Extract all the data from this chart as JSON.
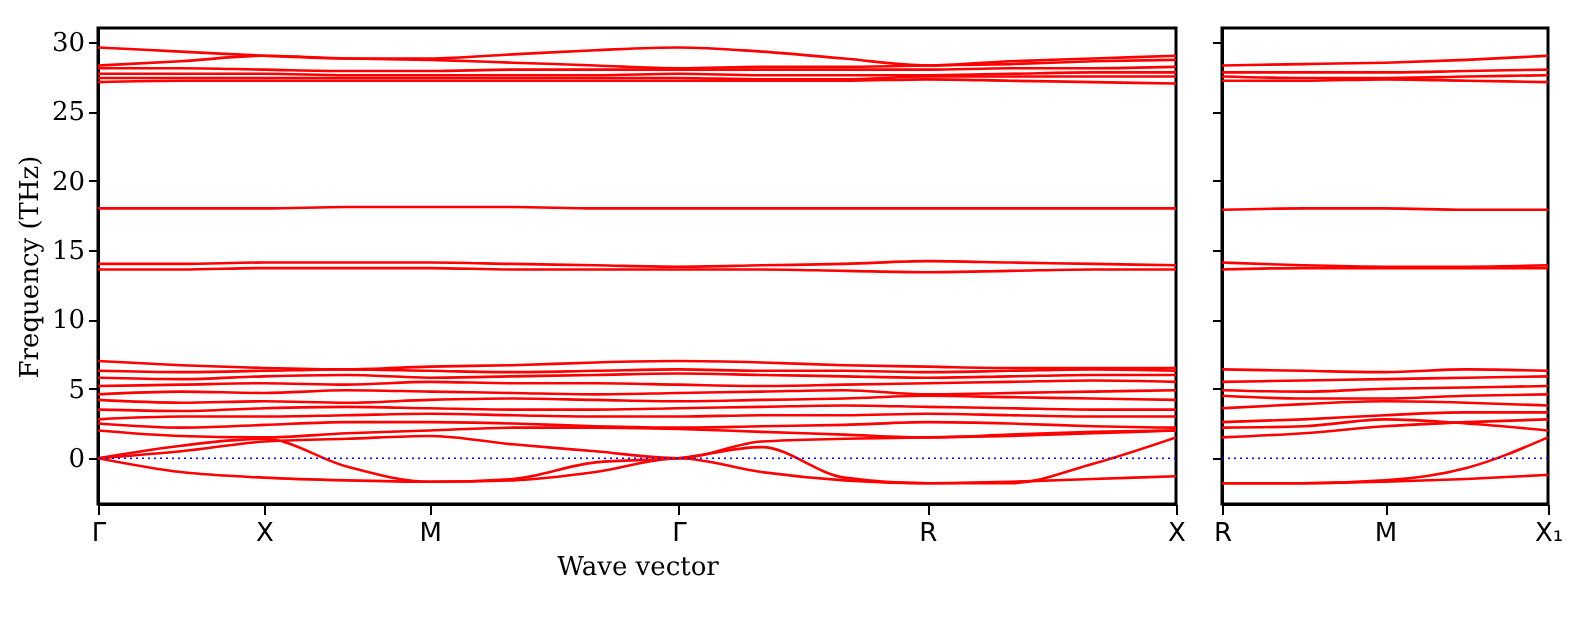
{
  "chart_data": [
    {
      "type": "line",
      "xlabel": "Wave vector",
      "ylabel": "Frequency (THz)",
      "ylim": [
        -3.3,
        31
      ],
      "categories": [
        "Γ",
        null,
        "X",
        null,
        "M",
        null,
        null,
        "Γ",
        null,
        null,
        "R",
        null,
        null,
        "X"
      ],
      "yticks": [
        0,
        5,
        10,
        15,
        20,
        25,
        30
      ],
      "grid": false,
      "legend": false,
      "marker": "none",
      "line_style": "solid",
      "ref_lines": [
        {
          "axis": "y",
          "value": 0,
          "color": "#0000ff",
          "line_style": "dotted"
        }
      ],
      "series": [
        {
          "color": "#ff0000",
          "values": [
            0,
            -1.0,
            -1.4,
            -1.6,
            -1.7,
            -1.6,
            -1.0,
            0,
            -1.0,
            -1.6,
            -1.8,
            -1.7,
            -1.5,
            -1.3
          ]
        },
        {
          "color": "#ff0000",
          "values": [
            0,
            0.9,
            1.4,
            -0.6,
            -1.7,
            -1.5,
            -0.3,
            0,
            0.8,
            -1.4,
            -1.8,
            -1.8,
            -0.4,
            1.5
          ]
        },
        {
          "color": "#ff0000",
          "values": [
            0,
            0.5,
            1.2,
            1.4,
            1.6,
            1.0,
            0.5,
            0,
            1.2,
            1.4,
            1.5,
            1.6,
            1.8,
            2.0
          ]
        },
        {
          "color": "#ff0000",
          "values": [
            2.0,
            1.6,
            1.5,
            1.8,
            2.0,
            2.2,
            2.2,
            2.1,
            1.9,
            1.7,
            1.5,
            1.7,
            1.9,
            2.0
          ]
        },
        {
          "color": "#ff0000",
          "values": [
            2.5,
            2.2,
            2.4,
            2.6,
            2.6,
            2.5,
            2.3,
            2.2,
            2.3,
            2.4,
            2.6,
            2.5,
            2.3,
            2.2
          ]
        },
        {
          "color": "#ff0000",
          "values": [
            2.8,
            3.0,
            3.0,
            3.1,
            3.2,
            3.1,
            3.0,
            3.0,
            3.1,
            3.1,
            3.2,
            3.1,
            3.0,
            3.0
          ]
        },
        {
          "color": "#ff0000",
          "values": [
            3.5,
            3.4,
            3.6,
            3.7,
            3.6,
            3.5,
            3.5,
            3.6,
            3.7,
            3.8,
            3.7,
            3.6,
            3.5,
            3.5
          ]
        },
        {
          "color": "#ff0000",
          "values": [
            4.2,
            4.0,
            4.1,
            4.0,
            4.2,
            4.3,
            4.2,
            4.1,
            4.2,
            4.3,
            4.5,
            4.4,
            4.3,
            4.2
          ]
        },
        {
          "color": "#ff0000",
          "values": [
            4.6,
            4.8,
            4.7,
            4.9,
            4.8,
            4.7,
            4.6,
            4.7,
            4.8,
            4.9,
            4.6,
            4.7,
            4.8,
            4.9
          ]
        },
        {
          "color": "#ff0000",
          "values": [
            5.2,
            5.3,
            5.4,
            5.3,
            5.5,
            5.4,
            5.4,
            5.3,
            5.2,
            5.3,
            5.4,
            5.5,
            5.6,
            5.5
          ]
        },
        {
          "color": "#ff0000",
          "values": [
            5.8,
            5.7,
            5.9,
            6.0,
            5.8,
            5.9,
            6.0,
            6.1,
            6.0,
            5.9,
            5.8,
            5.9,
            6.0,
            6.0
          ]
        },
        {
          "color": "#ff0000",
          "values": [
            6.3,
            6.2,
            6.3,
            6.4,
            6.3,
            6.2,
            6.3,
            6.4,
            6.3,
            6.3,
            6.2,
            6.3,
            6.4,
            6.3
          ]
        },
        {
          "color": "#ff0000",
          "values": [
            7.0,
            6.7,
            6.5,
            6.4,
            6.6,
            6.7,
            6.9,
            7.0,
            6.9,
            6.7,
            6.6,
            6.5,
            6.5,
            6.5
          ]
        },
        {
          "color": "#ff0000",
          "values": [
            13.6,
            13.6,
            13.7,
            13.7,
            13.7,
            13.6,
            13.6,
            13.6,
            13.6,
            13.5,
            13.4,
            13.5,
            13.6,
            13.6
          ]
        },
        {
          "color": "#ff0000",
          "values": [
            14.0,
            14.0,
            14.1,
            14.1,
            14.1,
            14.0,
            13.9,
            13.8,
            13.9,
            14.0,
            14.2,
            14.1,
            14.0,
            13.9
          ]
        },
        {
          "color": "#ff0000",
          "values": [
            18.0,
            18.0,
            18.0,
            18.1,
            18.1,
            18.1,
            18.0,
            18.0,
            18.0,
            18.0,
            18.0,
            18.0,
            18.0,
            18.0
          ]
        },
        {
          "color": "#ff0000",
          "values": [
            27.1,
            27.2,
            27.2,
            27.2,
            27.2,
            27.2,
            27.2,
            27.2,
            27.2,
            27.2,
            27.3,
            27.2,
            27.1,
            27.0
          ]
        },
        {
          "color": "#ff0000",
          "values": [
            27.4,
            27.4,
            27.4,
            27.4,
            27.4,
            27.4,
            27.4,
            27.4,
            27.3,
            27.3,
            27.5,
            27.5,
            27.5,
            27.5
          ]
        },
        {
          "color": "#ff0000",
          "values": [
            27.7,
            27.7,
            27.7,
            27.6,
            27.6,
            27.6,
            27.6,
            27.7,
            27.6,
            27.6,
            27.6,
            27.7,
            27.8,
            27.8
          ]
        },
        {
          "color": "#ff0000",
          "values": [
            28.1,
            28.1,
            28.0,
            27.9,
            27.9,
            28.0,
            28.0,
            28.0,
            28.0,
            28.0,
            28.0,
            28.1,
            28.1,
            28.2
          ]
        },
        {
          "color": "#ff0000",
          "values": [
            28.3,
            28.6,
            29.0,
            28.8,
            28.7,
            28.5,
            28.3,
            28.1,
            28.2,
            28.2,
            28.3,
            28.4,
            28.6,
            28.7
          ]
        },
        {
          "color": "#ff0000",
          "values": [
            29.6,
            29.3,
            29.0,
            28.8,
            28.8,
            29.1,
            29.4,
            29.6,
            29.3,
            28.8,
            28.3,
            28.6,
            28.8,
            29.0
          ]
        }
      ]
    },
    {
      "type": "line",
      "ylim": [
        -3.3,
        31
      ],
      "categories": [
        "R",
        null,
        "M",
        null,
        "X₁"
      ],
      "yticks": [
        0,
        5,
        10,
        15,
        20,
        25,
        30
      ],
      "tick_labels": "x",
      "grid": false,
      "legend": false,
      "marker": "none",
      "line_style": "solid",
      "ref_lines": [
        {
          "axis": "y",
          "value": 0,
          "color": "#0000ff",
          "line_style": "dotted"
        }
      ],
      "series": [
        {
          "color": "#ff0000",
          "values": [
            -1.8,
            -1.8,
            -1.7,
            -1.5,
            -1.2
          ]
        },
        {
          "color": "#ff0000",
          "values": [
            -1.8,
            -1.8,
            -1.6,
            -0.7,
            1.5
          ]
        },
        {
          "color": "#ff0000",
          "values": [
            1.5,
            1.8,
            2.3,
            2.6,
            2.8
          ]
        },
        {
          "color": "#ff0000",
          "values": [
            2.2,
            2.3,
            2.8,
            2.5,
            2.0
          ]
        },
        {
          "color": "#ff0000",
          "values": [
            2.6,
            2.8,
            3.1,
            3.3,
            3.3
          ]
        },
        {
          "color": "#ff0000",
          "values": [
            3.6,
            3.9,
            4.1,
            4.0,
            3.8
          ]
        },
        {
          "color": "#ff0000",
          "values": [
            4.5,
            4.3,
            4.3,
            4.5,
            4.6
          ]
        },
        {
          "color": "#ff0000",
          "values": [
            4.9,
            4.8,
            5.0,
            5.1,
            5.2
          ]
        },
        {
          "color": "#ff0000",
          "values": [
            5.5,
            5.6,
            5.7,
            5.8,
            5.9
          ]
        },
        {
          "color": "#ff0000",
          "values": [
            6.4,
            6.3,
            6.2,
            6.4,
            6.3
          ]
        },
        {
          "color": "#ff0000",
          "values": [
            13.6,
            13.7,
            13.7,
            13.7,
            13.7
          ]
        },
        {
          "color": "#ff0000",
          "values": [
            14.1,
            13.9,
            13.8,
            13.8,
            13.9
          ]
        },
        {
          "color": "#ff0000",
          "values": [
            17.9,
            18.0,
            18.0,
            17.9,
            17.9
          ]
        },
        {
          "color": "#ff0000",
          "values": [
            27.2,
            27.2,
            27.3,
            27.2,
            27.1
          ]
        },
        {
          "color": "#ff0000",
          "values": [
            27.5,
            27.4,
            27.4,
            27.5,
            27.6
          ]
        },
        {
          "color": "#ff0000",
          "values": [
            27.8,
            27.8,
            27.8,
            27.9,
            28.0
          ]
        },
        {
          "color": "#ff0000",
          "values": [
            28.3,
            28.4,
            28.5,
            28.7,
            29.0
          ]
        }
      ]
    }
  ]
}
